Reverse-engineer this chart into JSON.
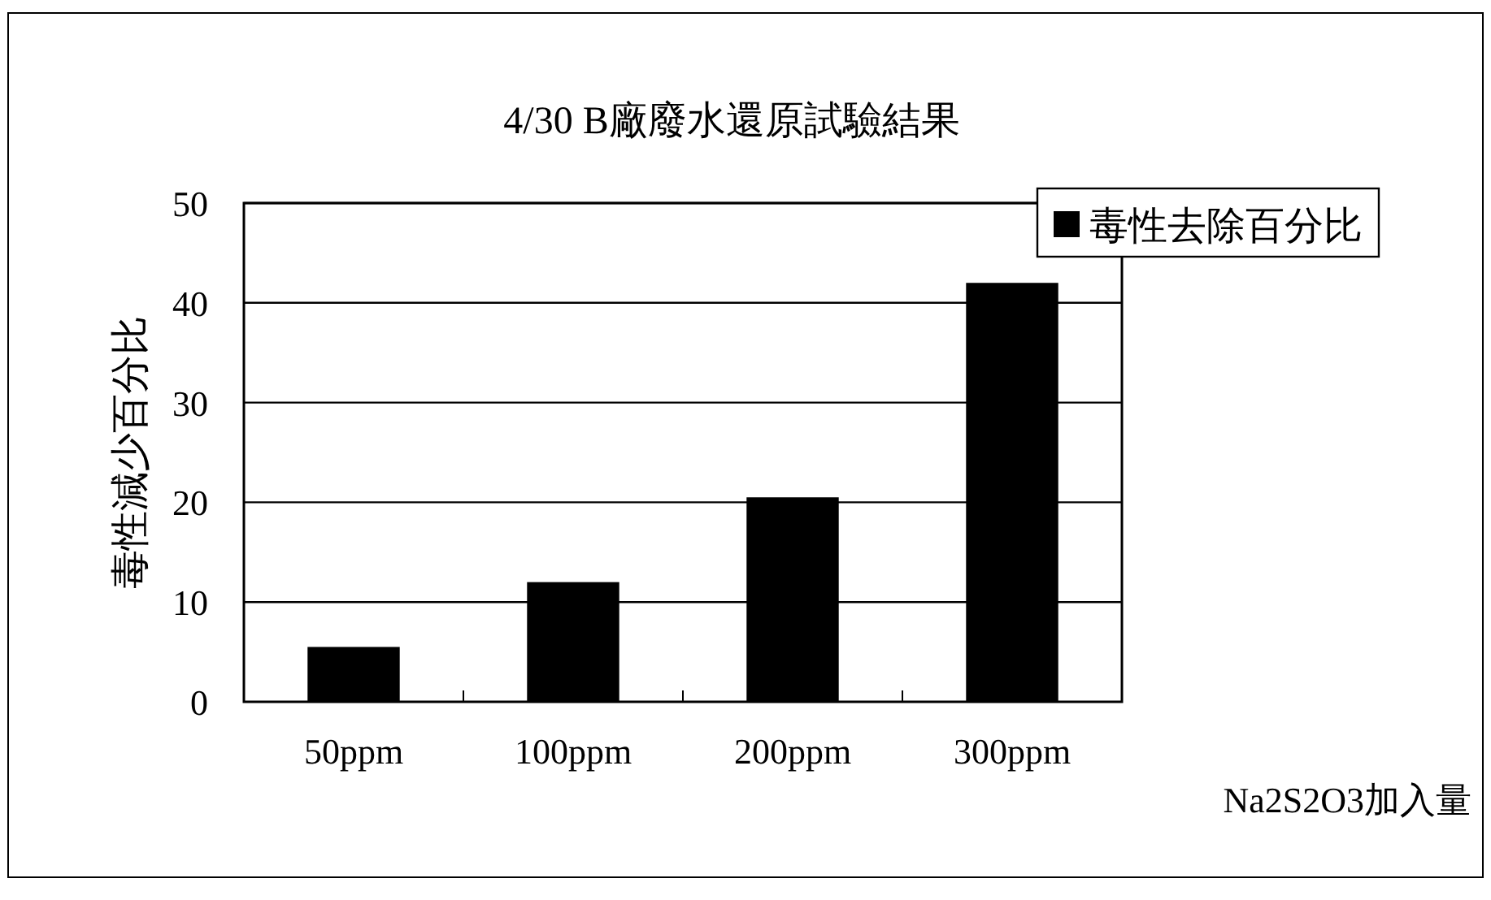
{
  "chart_data": {
    "type": "bar",
    "title": "4/30 B廠廢水還原試驗結果",
    "ylabel": "毒性減少百分比",
    "xlabel": "Na2S2O3加入量",
    "categories": [
      "50ppm",
      "100ppm",
      "200ppm",
      "300ppm"
    ],
    "series": [
      {
        "name": "毒性去除百分比",
        "color": "#000000",
        "values": [
          5.5,
          12,
          20.5,
          42
        ]
      }
    ],
    "ylim": [
      0,
      50
    ],
    "yticks": [
      0,
      10,
      20,
      30,
      40,
      50
    ],
    "grid": "y",
    "legend": "top right"
  }
}
